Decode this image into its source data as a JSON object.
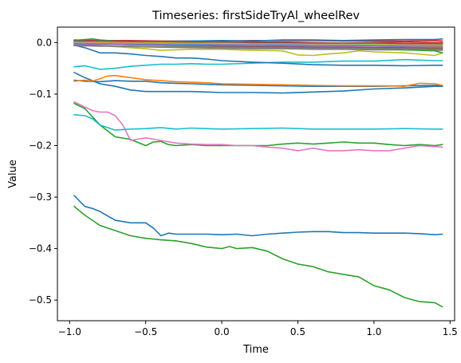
{
  "chart_data": {
    "type": "line",
    "title": "Timeseries: firstSideTryAl_wheelRev",
    "xlabel": "Time",
    "ylabel": "Value",
    "xlim": [
      -1.08,
      1.53
    ],
    "ylim": [
      -0.54,
      0.03
    ],
    "x_ticks": [
      -1.0,
      -0.5,
      0.0,
      0.5,
      1.0,
      1.5
    ],
    "x_tick_labels": [
      "−1.0",
      "−0.5",
      "0.0",
      "0.5",
      "1.0",
      "1.5"
    ],
    "y_ticks": [
      0.0,
      -0.1,
      -0.2,
      -0.3,
      -0.4,
      -0.5
    ],
    "y_tick_labels": [
      "0.0",
      "−0.1",
      "−0.2",
      "−0.3",
      "−0.4",
      "−0.5"
    ],
    "grid": false,
    "legend": "none",
    "series": [
      {
        "color": "#2ca02c",
        "x": [
          -0.97,
          -0.9,
          -0.8,
          -0.7,
          -0.6,
          -0.5,
          -0.4,
          -0.3,
          -0.2,
          -0.1,
          0.0,
          0.05,
          0.1,
          0.2,
          0.3,
          0.4,
          0.5,
          0.6,
          0.7,
          0.8,
          0.9,
          1.0,
          1.1,
          1.2,
          1.3,
          1.4,
          1.45
        ],
        "values": [
          -0.318,
          -0.335,
          -0.355,
          -0.365,
          -0.375,
          -0.38,
          -0.383,
          -0.385,
          -0.39,
          -0.397,
          -0.4,
          -0.396,
          -0.4,
          -0.398,
          -0.405,
          -0.42,
          -0.43,
          -0.435,
          -0.445,
          -0.45,
          -0.455,
          -0.472,
          -0.48,
          -0.495,
          -0.503,
          -0.505,
          -0.513
        ]
      },
      {
        "color": "#1f77b4",
        "x": [
          -0.97,
          -0.9,
          -0.85,
          -0.8,
          -0.7,
          -0.6,
          -0.5,
          -0.45,
          -0.4,
          -0.35,
          -0.3,
          -0.2,
          -0.1,
          0.0,
          0.1,
          0.2,
          0.3,
          0.4,
          0.5,
          0.6,
          0.7,
          0.8,
          0.9,
          1.0,
          1.1,
          1.2,
          1.3,
          1.4,
          1.45
        ],
        "values": [
          -0.297,
          -0.318,
          -0.322,
          -0.328,
          -0.345,
          -0.35,
          -0.35,
          -0.36,
          -0.375,
          -0.37,
          -0.372,
          -0.372,
          -0.372,
          -0.373,
          -0.372,
          -0.375,
          -0.372,
          -0.37,
          -0.368,
          -0.367,
          -0.367,
          -0.369,
          -0.369,
          -0.37,
          -0.37,
          -0.37,
          -0.371,
          -0.373,
          -0.372
        ]
      },
      {
        "color": "#2ca02c",
        "x": [
          -0.97,
          -0.9,
          -0.8,
          -0.7,
          -0.6,
          -0.5,
          -0.45,
          -0.4,
          -0.35,
          -0.3,
          -0.2,
          -0.1,
          0.0,
          0.1,
          0.2,
          0.3,
          0.4,
          0.5,
          0.6,
          0.7,
          0.8,
          0.9,
          1.0,
          1.1,
          1.2,
          1.3,
          1.4,
          1.45
        ],
        "values": [
          -0.118,
          -0.128,
          -0.16,
          -0.183,
          -0.188,
          -0.2,
          -0.193,
          -0.192,
          -0.198,
          -0.2,
          -0.198,
          -0.2,
          -0.2,
          -0.2,
          -0.2,
          -0.2,
          -0.197,
          -0.195,
          -0.197,
          -0.195,
          -0.193,
          -0.195,
          -0.195,
          -0.198,
          -0.2,
          -0.198,
          -0.2,
          -0.198
        ]
      },
      {
        "color": "#e377c2",
        "x": [
          -0.97,
          -0.9,
          -0.85,
          -0.8,
          -0.75,
          -0.7,
          -0.65,
          -0.6,
          -0.5,
          -0.4,
          -0.3,
          -0.2,
          -0.1,
          0.0,
          0.1,
          0.2,
          0.3,
          0.4,
          0.5,
          0.6,
          0.7,
          0.8,
          0.9,
          1.0,
          1.1,
          1.2,
          1.3,
          1.4,
          1.45
        ],
        "values": [
          -0.115,
          -0.125,
          -0.132,
          -0.135,
          -0.135,
          -0.142,
          -0.16,
          -0.19,
          -0.185,
          -0.19,
          -0.195,
          -0.197,
          -0.198,
          -0.198,
          -0.2,
          -0.2,
          -0.203,
          -0.205,
          -0.21,
          -0.205,
          -0.21,
          -0.21,
          -0.208,
          -0.21,
          -0.21,
          -0.205,
          -0.2,
          -0.202,
          -0.203
        ]
      },
      {
        "color": "#17becf",
        "x": [
          -0.97,
          -0.9,
          -0.85,
          -0.8,
          -0.7,
          -0.6,
          -0.5,
          -0.4,
          -0.3,
          -0.2,
          -0.1,
          0.0,
          0.2,
          0.4,
          0.6,
          0.8,
          1.0,
          1.2,
          1.4,
          1.45
        ],
        "values": [
          -0.14,
          -0.142,
          -0.148,
          -0.16,
          -0.17,
          -0.168,
          -0.167,
          -0.165,
          -0.168,
          -0.166,
          -0.167,
          -0.168,
          -0.167,
          -0.166,
          -0.168,
          -0.168,
          -0.168,
          -0.167,
          -0.168,
          -0.168
        ]
      },
      {
        "color": "#1f77b4",
        "x": [
          -0.97,
          -0.9,
          -0.8,
          -0.7,
          -0.6,
          -0.5,
          -0.4,
          -0.3,
          -0.2,
          -0.1,
          0.0,
          0.2,
          0.4,
          0.6,
          0.8,
          1.0,
          1.2,
          1.4,
          1.45
        ],
        "values": [
          -0.058,
          -0.068,
          -0.08,
          -0.085,
          -0.092,
          -0.095,
          -0.095,
          -0.095,
          -0.095,
          -0.096,
          -0.097,
          -0.097,
          -0.098,
          -0.096,
          -0.094,
          -0.09,
          -0.088,
          -0.085,
          -0.085
        ]
      },
      {
        "color": "#1f77b4",
        "x": [
          -0.97,
          -0.9,
          -0.8,
          -0.7,
          -0.6,
          -0.5,
          -0.4,
          -0.3,
          -0.2,
          -0.1,
          0.0,
          0.2,
          0.4,
          0.6,
          0.8,
          1.0,
          1.2,
          1.4,
          1.45
        ],
        "values": [
          -0.073,
          -0.075,
          -0.076,
          -0.074,
          -0.075,
          -0.075,
          -0.078,
          -0.079,
          -0.08,
          -0.081,
          -0.082,
          -0.083,
          -0.084,
          -0.085,
          -0.085,
          -0.085,
          -0.084,
          -0.083,
          -0.083
        ]
      },
      {
        "color": "#ff7f0e",
        "x": [
          -0.97,
          -0.9,
          -0.85,
          -0.8,
          -0.75,
          -0.7,
          -0.6,
          -0.5,
          -0.4,
          -0.3,
          -0.2,
          -0.1,
          0.0,
          0.2,
          0.4,
          0.6,
          0.8,
          1.0,
          1.1,
          1.2,
          1.3,
          1.4,
          1.45
        ],
        "values": [
          -0.075,
          -0.073,
          -0.075,
          -0.07,
          -0.065,
          -0.064,
          -0.068,
          -0.072,
          -0.074,
          -0.076,
          -0.077,
          -0.078,
          -0.08,
          -0.081,
          -0.082,
          -0.083,
          -0.084,
          -0.084,
          -0.084,
          -0.085,
          -0.079,
          -0.08,
          -0.083
        ]
      },
      {
        "color": "#17becf",
        "x": [
          -0.97,
          -0.9,
          -0.8,
          -0.7,
          -0.6,
          -0.5,
          -0.4,
          -0.3,
          -0.2,
          -0.1,
          0.0,
          0.2,
          0.4,
          0.6,
          0.8,
          1.0,
          1.2,
          1.4,
          1.45
        ],
        "values": [
          -0.047,
          -0.045,
          -0.052,
          -0.05,
          -0.046,
          -0.044,
          -0.042,
          -0.042,
          -0.041,
          -0.042,
          -0.042,
          -0.04,
          -0.038,
          -0.038,
          -0.036,
          -0.036,
          -0.033,
          -0.035,
          -0.035
        ]
      },
      {
        "color": "#1f77b4",
        "x": [
          -0.97,
          -0.9,
          -0.8,
          -0.7,
          -0.6,
          -0.5,
          -0.4,
          -0.3,
          -0.2,
          -0.1,
          0.0,
          0.2,
          0.4,
          0.6,
          0.8,
          1.0,
          1.2,
          1.4,
          1.45
        ],
        "values": [
          -0.005,
          -0.01,
          -0.02,
          -0.02,
          -0.022,
          -0.025,
          -0.027,
          -0.03,
          -0.03,
          -0.032,
          -0.035,
          -0.038,
          -0.04,
          -0.043,
          -0.044,
          -0.044,
          -0.045,
          -0.044,
          -0.044
        ]
      },
      {
        "color": "#bcbd22",
        "x": [
          -0.97,
          -0.9,
          -0.8,
          -0.7,
          -0.6,
          -0.5,
          -0.4,
          -0.3,
          -0.2,
          -0.1,
          0.0,
          0.2,
          0.4,
          0.5,
          0.6,
          0.7,
          0.8,
          0.9,
          1.0,
          1.2,
          1.4,
          1.45
        ],
        "values": [
          -0.002,
          -0.004,
          -0.006,
          -0.008,
          -0.01,
          -0.012,
          -0.015,
          -0.014,
          -0.013,
          -0.013,
          -0.013,
          -0.015,
          -0.016,
          -0.024,
          -0.025,
          -0.022,
          -0.02,
          -0.016,
          -0.018,
          -0.02,
          -0.025,
          -0.02
        ]
      },
      {
        "color": "#7f7f7f",
        "x": [
          -0.97,
          -0.8,
          -0.6,
          -0.4,
          -0.2,
          0.0,
          0.2,
          0.4,
          0.6,
          0.8,
          1.0,
          1.2,
          1.4,
          1.45
        ],
        "values": [
          -0.004,
          -0.006,
          -0.008,
          -0.009,
          -0.01,
          -0.011,
          -0.012,
          -0.012,
          -0.013,
          -0.013,
          -0.014,
          -0.014,
          -0.015,
          -0.015
        ]
      },
      {
        "color": "#8c564b",
        "x": [
          -0.97,
          -0.8,
          -0.6,
          -0.4,
          -0.2,
          0.0,
          0.2,
          0.4,
          0.6,
          0.8,
          1.0,
          1.2,
          1.4,
          1.45
        ],
        "values": [
          -0.002,
          -0.003,
          -0.004,
          -0.005,
          -0.006,
          -0.007,
          -0.008,
          -0.008,
          -0.009,
          -0.009,
          -0.01,
          -0.01,
          -0.011,
          -0.011
        ]
      },
      {
        "color": "#9467bd",
        "x": [
          -0.97,
          -0.8,
          -0.6,
          -0.4,
          -0.2,
          0.0,
          0.2,
          0.4,
          0.6,
          0.8,
          1.0,
          1.2,
          1.4,
          1.45
        ],
        "values": [
          0.001,
          0.0,
          -0.001,
          -0.002,
          -0.003,
          -0.004,
          -0.005,
          -0.006,
          -0.007,
          -0.006,
          -0.005,
          -0.006,
          -0.007,
          -0.007
        ]
      },
      {
        "color": "#d62728",
        "x": [
          -0.97,
          -0.8,
          -0.6,
          -0.4,
          -0.2,
          0.0,
          0.2,
          0.4,
          0.6,
          0.8,
          1.0,
          1.2,
          1.4,
          1.45
        ],
        "values": [
          0.003,
          0.002,
          0.002,
          0.001,
          0.0,
          0.0,
          0.001,
          0.001,
          0.0,
          -0.001,
          0.0,
          0.001,
          0.0,
          0.0
        ]
      },
      {
        "color": "#d62728",
        "x": [
          -0.97,
          -0.8,
          -0.6,
          -0.4,
          -0.2,
          0.0,
          0.2,
          0.4,
          0.6,
          0.8,
          1.0,
          1.2,
          1.4,
          1.45
        ],
        "values": [
          0.005,
          0.004,
          0.004,
          0.003,
          0.003,
          0.003,
          0.004,
          0.004,
          0.004,
          0.003,
          0.003,
          0.003,
          0.004,
          0.003
        ]
      },
      {
        "color": "#2ca02c",
        "x": [
          -0.97,
          -0.9,
          -0.85,
          -0.8,
          -0.7,
          -0.6,
          -0.4,
          -0.2,
          0.0,
          0.2,
          0.4,
          0.6,
          0.8,
          1.0,
          1.2,
          1.4,
          1.45
        ],
        "values": [
          0.004,
          0.006,
          0.007,
          0.005,
          0.003,
          0.002,
          0.001,
          0.0,
          -0.001,
          -0.002,
          -0.004,
          -0.008,
          -0.01,
          -0.012,
          -0.014,
          -0.016,
          -0.02
        ]
      },
      {
        "color": "#1f77b4",
        "x": [
          -0.97,
          -0.8,
          -0.6,
          -0.4,
          -0.2,
          0.0,
          0.2,
          0.4,
          0.6,
          0.8,
          1.0,
          1.2,
          1.4,
          1.45
        ],
        "values": [
          0.002,
          0.003,
          0.002,
          0.002,
          0.003,
          0.004,
          0.003,
          0.005,
          0.005,
          0.004,
          0.005,
          0.006,
          0.006,
          0.007
        ]
      },
      {
        "color": "#ff7f0e",
        "x": [
          -0.97,
          -0.8,
          -0.6,
          -0.4,
          -0.2,
          0.0,
          0.2,
          0.4,
          0.6,
          0.8,
          1.0,
          1.2,
          1.4,
          1.45
        ],
        "values": [
          -0.001,
          -0.002,
          -0.002,
          -0.003,
          -0.004,
          -0.004,
          -0.005,
          -0.005,
          -0.006,
          -0.006,
          -0.006,
          -0.007,
          -0.008,
          -0.008
        ]
      },
      {
        "color": "#17becf",
        "x": [
          -0.97,
          -0.8,
          -0.6,
          -0.4,
          -0.2,
          0.0,
          0.2,
          0.4,
          0.6,
          0.8,
          1.0,
          1.2,
          1.4,
          1.45
        ],
        "values": [
          0.0,
          -0.001,
          -0.002,
          -0.002,
          -0.003,
          -0.003,
          -0.003,
          -0.004,
          -0.004,
          -0.004,
          -0.005,
          -0.005,
          -0.005,
          -0.005
        ]
      },
      {
        "color": "#e377c2",
        "x": [
          -0.97,
          -0.8,
          -0.6,
          -0.4,
          -0.2,
          0.0,
          0.2,
          0.4,
          0.6,
          0.8,
          1.0,
          1.2,
          1.4,
          1.45
        ],
        "values": [
          0.001,
          0.0,
          0.0,
          -0.001,
          -0.001,
          -0.002,
          -0.002,
          -0.002,
          -0.003,
          -0.003,
          -0.003,
          -0.004,
          -0.004,
          -0.004
        ]
      },
      {
        "color": "#bcbd22",
        "x": [
          -0.97,
          -0.8,
          -0.6,
          -0.4,
          -0.2,
          0.0,
          0.2,
          0.4,
          0.6,
          0.8,
          1.0,
          1.2,
          1.4,
          1.45
        ],
        "values": [
          0.002,
          0.001,
          0.001,
          0.0,
          0.0,
          -0.001,
          -0.001,
          -0.001,
          -0.002,
          -0.002,
          -0.003,
          -0.003,
          -0.003,
          -0.003
        ]
      },
      {
        "color": "#9467bd",
        "x": [
          -0.97,
          -0.8,
          -0.6,
          -0.4,
          -0.2,
          0.0,
          0.2,
          0.4,
          0.6,
          0.8,
          1.0,
          1.2,
          1.4,
          1.45
        ],
        "values": [
          -0.003,
          -0.003,
          -0.004,
          -0.004,
          -0.005,
          -0.005,
          -0.006,
          -0.006,
          -0.007,
          -0.007,
          -0.007,
          -0.008,
          -0.009,
          -0.009
        ]
      },
      {
        "color": "#8c564b",
        "x": [
          -0.97,
          -0.8,
          -0.6,
          -0.4,
          -0.2,
          0.0,
          0.2,
          0.4,
          0.6,
          0.8,
          1.0,
          1.2,
          1.4,
          1.45
        ],
        "values": [
          0.003,
          0.003,
          0.002,
          0.002,
          0.001,
          0.001,
          0.0,
          0.0,
          -0.001,
          -0.001,
          -0.001,
          -0.002,
          -0.002,
          -0.002
        ]
      },
      {
        "color": "#7f7f7f",
        "x": [
          -0.97,
          -0.8,
          -0.6,
          -0.4,
          -0.2,
          0.0,
          0.2,
          0.4,
          0.6,
          0.8,
          1.0,
          1.2,
          1.4,
          1.45
        ],
        "values": [
          -0.006,
          -0.007,
          -0.007,
          -0.008,
          -0.008,
          -0.009,
          -0.01,
          -0.01,
          -0.011,
          -0.011,
          -0.012,
          -0.012,
          -0.013,
          -0.013
        ]
      }
    ]
  }
}
